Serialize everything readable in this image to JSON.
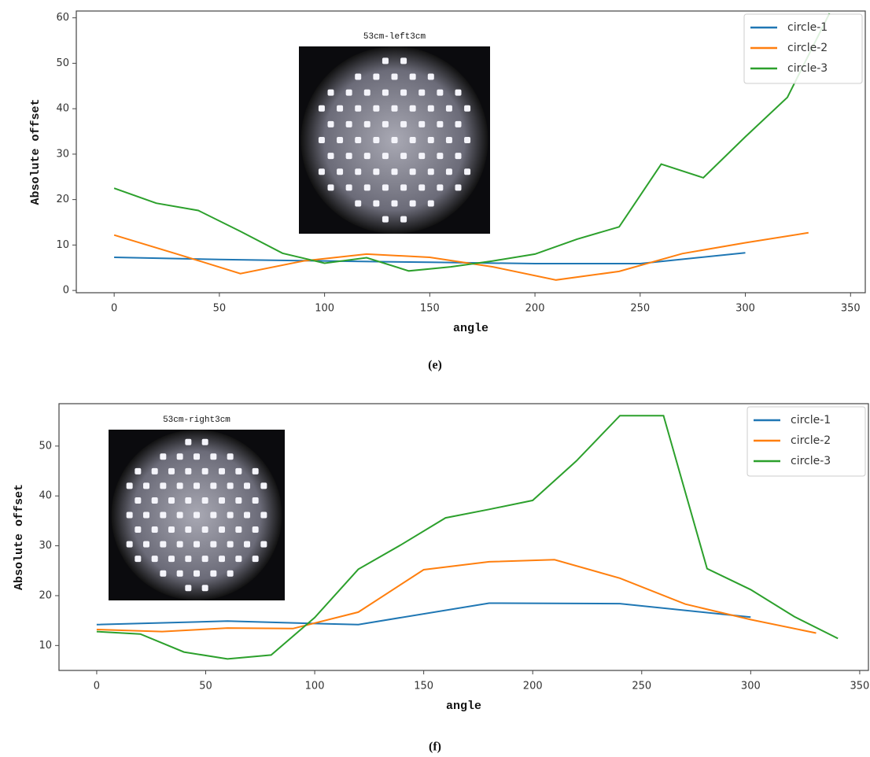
{
  "chart_data": [
    {
      "type": "line",
      "caption": "(e)",
      "inset_title": "53cm-left3cm",
      "xlabel": "angle",
      "ylabel": "Absolute offset",
      "xlim": [
        -18,
        357
      ],
      "ylim": [
        -0.5,
        61.5
      ],
      "xticks": [
        0,
        50,
        100,
        150,
        200,
        250,
        300,
        350
      ],
      "yticks": [
        0,
        10,
        20,
        30,
        40,
        50,
        60
      ],
      "legend": "upper right",
      "series": [
        {
          "name": "circle-1",
          "color": "#1f77b4",
          "x": [
            0,
            50,
            100,
            150,
            200,
            250,
            300
          ],
          "values": [
            7.3,
            6.8,
            6.5,
            6.2,
            5.9,
            5.9,
            8.3
          ]
        },
        {
          "name": "circle-2",
          "color": "#ff7f0e",
          "x": [
            0,
            30,
            60,
            90,
            120,
            150,
            180,
            210,
            240,
            270,
            300,
            330
          ],
          "values": [
            12.2,
            8,
            3.7,
            6.5,
            8,
            7.3,
            5.2,
            2.3,
            4.2,
            8.1,
            10.5,
            12.7
          ]
        },
        {
          "name": "circle-3",
          "color": "#2ca02c",
          "x": [
            0,
            20,
            40,
            60,
            80,
            100,
            120,
            140,
            160,
            180,
            200,
            220,
            240,
            260,
            280,
            300,
            320,
            340
          ],
          "values": [
            22.5,
            19.2,
            17.6,
            13,
            8.2,
            6,
            7.2,
            4.3,
            5.2,
            6.5,
            8,
            11.3,
            14,
            27.8,
            24.8,
            33.8,
            42.5,
            61
          ]
        }
      ]
    },
    {
      "type": "line",
      "caption": "(f)",
      "inset_title": "53cm-right3cm",
      "xlabel": "angle",
      "ylabel": "Absolute offset",
      "xlim": [
        -17.3,
        354
      ],
      "ylim": [
        5,
        58.5
      ],
      "xticks": [
        0,
        50,
        100,
        150,
        200,
        250,
        300,
        350
      ],
      "yticks": [
        10,
        20,
        30,
        40,
        50
      ],
      "legend": "upper right",
      "series": [
        {
          "name": "circle-1",
          "color": "#1f77b4",
          "x": [
            0,
            60,
            100,
            120,
            180,
            240,
            300
          ],
          "values": [
            14.2,
            14.9,
            14.4,
            14.2,
            18.5,
            18.4,
            15.7
          ]
        },
        {
          "name": "circle-2",
          "color": "#ff7f0e",
          "x": [
            0,
            30,
            60,
            90,
            120,
            150,
            180,
            210,
            240,
            270,
            300,
            330
          ],
          "values": [
            13.2,
            12.8,
            13.5,
            13.4,
            16.7,
            25.2,
            26.8,
            27.2,
            23.5,
            18.3,
            15.2,
            12.5
          ]
        },
        {
          "name": "circle-3",
          "color": "#2ca02c",
          "x": [
            0,
            20,
            40,
            60,
            80,
            100,
            120,
            140,
            160,
            180,
            200,
            220,
            240,
            260,
            280,
            300,
            320,
            340
          ],
          "values": [
            12.8,
            12.3,
            8.7,
            7.3,
            8.1,
            15.6,
            25.3,
            30.3,
            35.6,
            37.3,
            39.1,
            47,
            56.1,
            56.1,
            25.4,
            21.2,
            15.8,
            11.4
          ]
        }
      ]
    }
  ]
}
